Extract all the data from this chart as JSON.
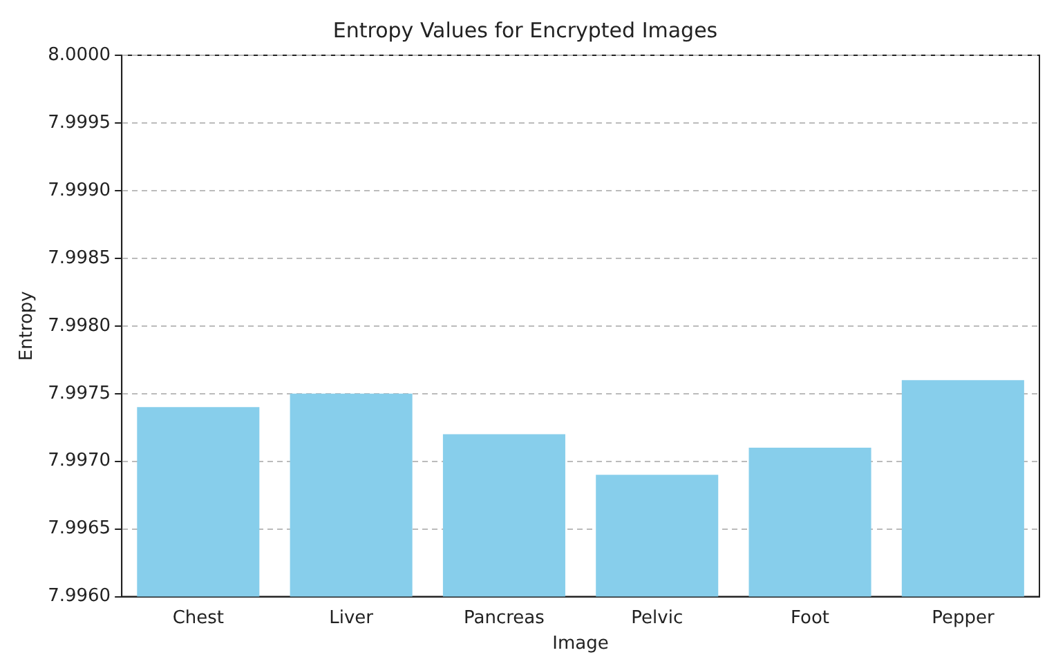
{
  "chart_data": {
    "type": "bar",
    "title": "Entropy Values for Encrypted Images",
    "xlabel": "Image",
    "ylabel": "Entropy",
    "categories": [
      "Chest",
      "Liver",
      "Pancreas",
      "Pelvic",
      "Foot",
      "Pepper"
    ],
    "values": [
      7.9974,
      7.9975,
      7.9972,
      7.9969,
      7.9971,
      7.9976
    ],
    "color": "#87ceeb",
    "ylim": [
      7.996,
      8.0
    ],
    "yticks": [
      {
        "value": 7.996,
        "label": "7.9960"
      },
      {
        "value": 7.9965,
        "label": "7.9965"
      },
      {
        "value": 7.997,
        "label": "7.9970"
      },
      {
        "value": 7.9975,
        "label": "7.9975"
      },
      {
        "value": 7.998,
        "label": "7.9980"
      },
      {
        "value": 7.9985,
        "label": "7.9985"
      },
      {
        "value": 7.999,
        "label": "7.9990"
      },
      {
        "value": 7.9995,
        "label": "7.9995"
      },
      {
        "value": 8.0,
        "label": "8.0000"
      }
    ],
    "grid": "y"
  }
}
